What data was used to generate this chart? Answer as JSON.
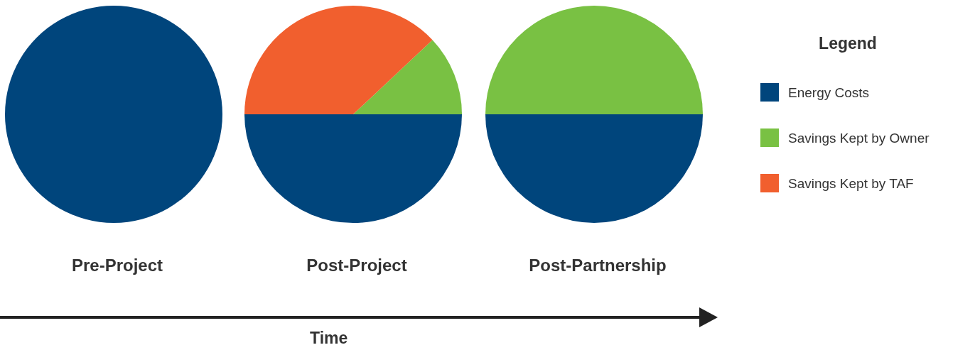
{
  "chart_data": {
    "type": "pie",
    "categories": [
      "Energy Costs",
      "Savings Kept by Owner",
      "Savings Kept by TAF"
    ],
    "colors": [
      "#00457c",
      "#79c143",
      "#f15f2e"
    ],
    "series": [
      {
        "name": "Pre-Project",
        "values": [
          100,
          0,
          0
        ]
      },
      {
        "name": "Post-Project",
        "values": [
          50,
          12,
          38
        ]
      },
      {
        "name": "Post-Partnership",
        "values": [
          50,
          50,
          0
        ]
      }
    ],
    "legend": "right",
    "legend_title": "Legend",
    "annotations": [
      "Time"
    ]
  }
}
